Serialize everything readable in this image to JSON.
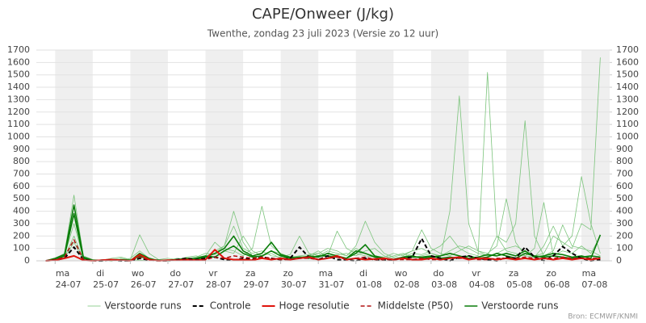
{
  "chart_data": {
    "type": "line",
    "title": "CAPE/Onweer (J/kg)",
    "subtitle": "Twenthe, zondag 23 juli 2023 (Versie zo 12 uur)",
    "source": "Bron: ECMWF/KNMI",
    "x": [
      0.75,
      1,
      1.25,
      1.5,
      1.75,
      2,
      2.25,
      2.5,
      2.75,
      3,
      3.25,
      3.5,
      3.75,
      4,
      4.25,
      4.5,
      4.75,
      5,
      5.25,
      5.5,
      5.75,
      6,
      6.25,
      6.5,
      6.75,
      7,
      7.25,
      7.5,
      7.75,
      8,
      8.25,
      8.5,
      8.75,
      9,
      9.25,
      9.5,
      9.75,
      10,
      10.25,
      10.5,
      10.75,
      11,
      11.25,
      11.5,
      11.75,
      12,
      12.25,
      12.5,
      12.75,
      13,
      13.25,
      13.5,
      13.75,
      14,
      14.25,
      14.5,
      14.75,
      15,
      15.25,
      15.5
    ],
    "xlim": [
      0.5,
      15.75
    ],
    "xticks": [
      {
        "value": 1,
        "day": "ma",
        "label": "24-07"
      },
      {
        "value": 2,
        "day": "di",
        "label": "25-07"
      },
      {
        "value": 3,
        "day": "wo",
        "label": "26-07"
      },
      {
        "value": 4,
        "day": "do",
        "label": "27-07"
      },
      {
        "value": 5,
        "day": "vr",
        "label": "28-07"
      },
      {
        "value": 6,
        "day": "za",
        "label": "29-07"
      },
      {
        "value": 7,
        "day": "zo",
        "label": "30-07"
      },
      {
        "value": 8,
        "day": "ma",
        "label": "31-07"
      },
      {
        "value": 9,
        "day": "di",
        "label": "01-08"
      },
      {
        "value": 10,
        "day": "wo",
        "label": "02-08"
      },
      {
        "value": 11,
        "day": "do",
        "label": "03-08"
      },
      {
        "value": 12,
        "day": "vr",
        "label": "04-08"
      },
      {
        "value": 13,
        "day": "za",
        "label": "05-08"
      },
      {
        "value": 14,
        "day": "zo",
        "label": "06-08"
      },
      {
        "value": 15,
        "day": "ma",
        "label": "07-08"
      }
    ],
    "ylim": [
      0,
      1700
    ],
    "yticks": [
      0,
      100,
      200,
      300,
      400,
      500,
      600,
      700,
      800,
      900,
      1000,
      1100,
      1200,
      1300,
      1400,
      1500,
      1600,
      1700
    ],
    "y2lim": [
      0,
      1700
    ],
    "y2ticks": [
      0,
      100,
      200,
      300,
      400,
      500,
      600,
      700,
      800,
      900,
      1000,
      1100,
      1200,
      1300,
      1400,
      1500,
      1600,
      1700
    ],
    "grid": true,
    "series": [
      {
        "name": "Verstoorde runs",
        "color": "#7cc47c",
        "width": 0.8,
        "dashed": false,
        "runs": [
          [
            0,
            20,
            60,
            530,
            40,
            10,
            5,
            20,
            30,
            10,
            5,
            0,
            10,
            20,
            10,
            30,
            40,
            20,
            60,
            120,
            400,
            150,
            40,
            30,
            80,
            60,
            20,
            40,
            30,
            60,
            100,
            80,
            40,
            120,
            320,
            150,
            60,
            30,
            50,
            80,
            100,
            60,
            30,
            400,
            1330,
            300,
            80,
            40,
            60,
            100,
            120,
            80,
            40,
            60,
            200,
            150,
            100,
            300,
            250,
            1640
          ],
          [
            0,
            10,
            40,
            300,
            20,
            5,
            0,
            10,
            20,
            10,
            210,
            60,
            10,
            5,
            20,
            10,
            30,
            60,
            50,
            100,
            80,
            40,
            100,
            440,
            120,
            60,
            30,
            20,
            40,
            80,
            30,
            50,
            60,
            40,
            80,
            100,
            40,
            20,
            30,
            60,
            50,
            80,
            120,
            200,
            100,
            60,
            40,
            1520,
            200,
            80,
            60,
            40,
            30,
            120,
            280,
            120,
            200,
            680,
            300,
            60
          ],
          [
            0,
            5,
            30,
            200,
            10,
            0,
            5,
            10,
            0,
            20,
            80,
            20,
            5,
            10,
            0,
            20,
            30,
            40,
            150,
            80,
            60,
            200,
            80,
            40,
            60,
            20,
            30,
            40,
            50,
            60,
            40,
            240,
            100,
            60,
            40,
            30,
            20,
            40,
            60,
            30,
            40,
            60,
            40,
            80,
            120,
            100,
            60,
            40,
            200,
            150,
            300,
            1130,
            200,
            40,
            80,
            290,
            120,
            100,
            80,
            40
          ],
          [
            0,
            10,
            20,
            150,
            5,
            0,
            10,
            0,
            10,
            5,
            30,
            10,
            5,
            0,
            20,
            10,
            20,
            30,
            80,
            120,
            280,
            100,
            60,
            80,
            40,
            30,
            50,
            200,
            60,
            40,
            80,
            60,
            40,
            100,
            60,
            40,
            30,
            60,
            40,
            80,
            250,
            100,
            60,
            40,
            80,
            120,
            80,
            60,
            120,
            500,
            150,
            40,
            100,
            470,
            40,
            80,
            60,
            120,
            60,
            200
          ]
        ]
      },
      {
        "name": "Controle",
        "color": "#000000",
        "width": 2,
        "dashed": true,
        "values": [
          0,
          5,
          20,
          110,
          10,
          0,
          0,
          5,
          0,
          0,
          20,
          5,
          0,
          0,
          10,
          20,
          10,
          20,
          30,
          10,
          5,
          20,
          10,
          30,
          20,
          10,
          20,
          110,
          30,
          10,
          40,
          10,
          5,
          0,
          20,
          10,
          5,
          10,
          20,
          30,
          180,
          40,
          20,
          0,
          30,
          40,
          20,
          10,
          0,
          30,
          20,
          110,
          30,
          0,
          40,
          115,
          60,
          20,
          0,
          10
        ]
      },
      {
        "name": "Hoge resolutie",
        "color": "#e0140c",
        "width": 2,
        "dashed": false,
        "values": [
          0,
          5,
          20,
          40,
          5,
          0,
          5,
          10,
          5,
          0,
          50,
          10,
          0,
          5,
          5,
          10,
          5,
          10,
          90,
          20,
          10,
          10,
          5,
          20,
          10,
          20,
          10,
          20,
          30,
          10,
          20,
          40,
          10,
          20,
          10,
          15,
          20,
          10,
          20,
          10,
          10,
          20,
          10,
          20,
          30,
          10,
          20,
          20,
          10,
          20,
          10,
          20,
          10,
          20,
          10,
          20,
          10,
          20,
          10,
          20
        ]
      },
      {
        "name": "Middelste (P50)",
        "color": "#b01010",
        "width": 1.5,
        "dashed": true,
        "values": [
          0,
          10,
          30,
          170,
          10,
          0,
          5,
          5,
          5,
          0,
          30,
          5,
          0,
          0,
          5,
          10,
          5,
          10,
          30,
          20,
          40,
          30,
          20,
          30,
          20,
          10,
          10,
          20,
          20,
          10,
          20,
          30,
          10,
          20,
          30,
          10,
          10,
          10,
          10,
          10,
          20,
          10,
          10,
          20,
          20,
          20,
          10,
          10,
          20,
          20,
          20,
          30,
          20,
          20,
          20,
          30,
          20,
          20,
          20,
          20
        ]
      },
      {
        "name": "Verstoorde runs",
        "color": "#0a7d0a",
        "width": 1.6,
        "dashed": false,
        "runs": [
          [
            0,
            20,
            50,
            450,
            30,
            5,
            0,
            10,
            5,
            0,
            60,
            20,
            0,
            5,
            10,
            20,
            10,
            30,
            60,
            100,
            200,
            80,
            40,
            60,
            150,
            50,
            30,
            20,
            40,
            30,
            60,
            40,
            20,
            80,
            60,
            30,
            20,
            10,
            30,
            40,
            20,
            30,
            40,
            60,
            40,
            20,
            30,
            50,
            40,
            60,
            40,
            80,
            30,
            40,
            60,
            50,
            30,
            40,
            20,
            210
          ],
          [
            0,
            10,
            40,
            380,
            20,
            0,
            5,
            0,
            10,
            5,
            40,
            10,
            5,
            0,
            5,
            10,
            20,
            40,
            30,
            80,
            120,
            60,
            30,
            40,
            80,
            40,
            20,
            30,
            20,
            40,
            40,
            30,
            20,
            60,
            130,
            40,
            20,
            10,
            20,
            30,
            30,
            40,
            20,
            30,
            20,
            40,
            20,
            30,
            60,
            40,
            20,
            60,
            40,
            30,
            40,
            30,
            20,
            30,
            40,
            30
          ]
        ]
      }
    ]
  }
}
